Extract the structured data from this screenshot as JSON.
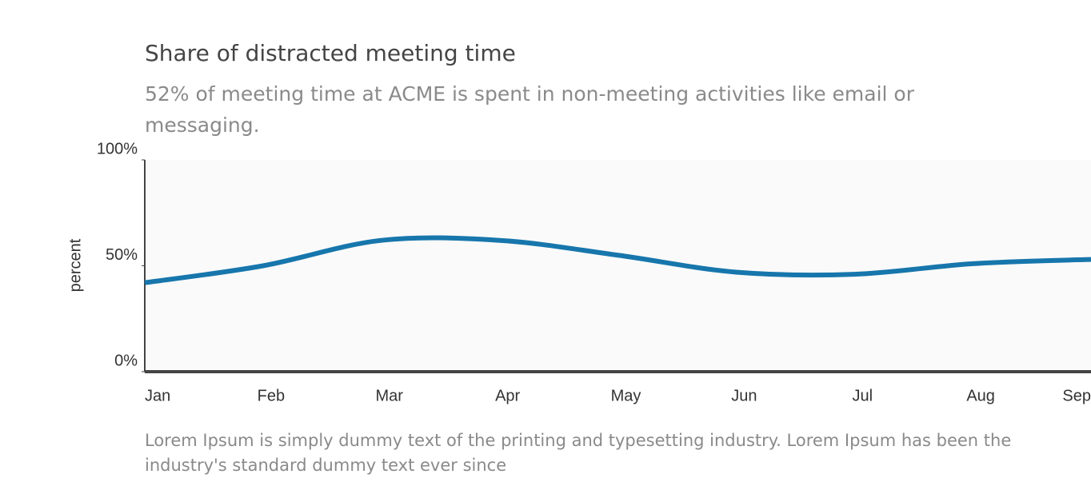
{
  "chart_data": {
    "type": "line",
    "title": "Share of distracted meeting time",
    "subtitle": "52% of meeting time at ACME is spent in non-meeting activities like email or messaging.",
    "ylabel": "percent",
    "footnote": "Lorem Ipsum is simply dummy text of the printing and typesetting industry. Lorem Ipsum has been the industry's standard dummy text ever since",
    "categories": [
      "Jan",
      "Feb",
      "Mar",
      "Apr",
      "May",
      "Jun",
      "Jul",
      "Aug",
      "Sep"
    ],
    "series": [
      {
        "name": "percent",
        "color": "#1776ac",
        "values": [
          42,
          50,
          62,
          62,
          55,
          47,
          46,
          51,
          53
        ]
      }
    ],
    "ylim": [
      0,
      100
    ],
    "yticks": [
      {
        "value": 0,
        "label": "0%"
      },
      {
        "value": 50,
        "label": "50%"
      },
      {
        "value": 100,
        "label": "100%"
      }
    ],
    "grid": false
  }
}
